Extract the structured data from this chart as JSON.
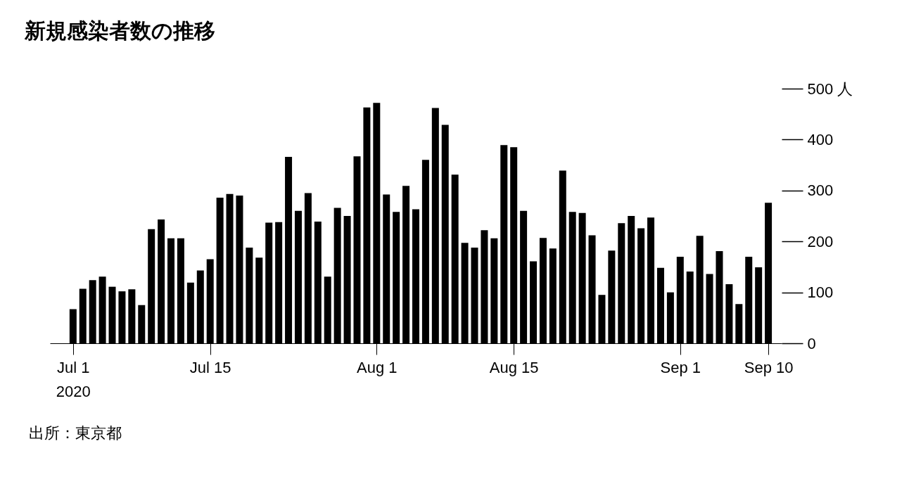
{
  "chart_data": {
    "type": "bar",
    "title": "新規感染者数の推移",
    "x": [
      "2020-07-01",
      "2020-07-02",
      "2020-07-03",
      "2020-07-04",
      "2020-07-05",
      "2020-07-06",
      "2020-07-07",
      "2020-07-08",
      "2020-07-09",
      "2020-07-10",
      "2020-07-11",
      "2020-07-12",
      "2020-07-13",
      "2020-07-14",
      "2020-07-15",
      "2020-07-16",
      "2020-07-17",
      "2020-07-18",
      "2020-07-19",
      "2020-07-20",
      "2020-07-21",
      "2020-07-22",
      "2020-07-23",
      "2020-07-24",
      "2020-07-25",
      "2020-07-26",
      "2020-07-27",
      "2020-07-28",
      "2020-07-29",
      "2020-07-30",
      "2020-07-31",
      "2020-08-01",
      "2020-08-02",
      "2020-08-03",
      "2020-08-04",
      "2020-08-05",
      "2020-08-06",
      "2020-08-07",
      "2020-08-08",
      "2020-08-09",
      "2020-08-10",
      "2020-08-11",
      "2020-08-12",
      "2020-08-13",
      "2020-08-14",
      "2020-08-15",
      "2020-08-16",
      "2020-08-17",
      "2020-08-18",
      "2020-08-19",
      "2020-08-20",
      "2020-08-21",
      "2020-08-22",
      "2020-08-23",
      "2020-08-24",
      "2020-08-25",
      "2020-08-26",
      "2020-08-27",
      "2020-08-28",
      "2020-08-29",
      "2020-08-30",
      "2020-08-31",
      "2020-09-01",
      "2020-09-02",
      "2020-09-03",
      "2020-09-04",
      "2020-09-05",
      "2020-09-06",
      "2020-09-07",
      "2020-09-08",
      "2020-09-09",
      "2020-09-10"
    ],
    "values": [
      67,
      107,
      124,
      131,
      111,
      102,
      106,
      75,
      224,
      243,
      206,
      206,
      119,
      143,
      165,
      286,
      293,
      290,
      188,
      168,
      237,
      238,
      366,
      260,
      295,
      239,
      131,
      266,
      250,
      367,
      463,
      472,
      292,
      258,
      309,
      263,
      360,
      462,
      429,
      331,
      197,
      188,
      222,
      206,
      389,
      385,
      260,
      161,
      207,
      186,
      339,
      258,
      256,
      212,
      95,
      182,
      236,
      250,
      226,
      247,
      148,
      100,
      170,
      141,
      211,
      136,
      181,
      116,
      77,
      170,
      149,
      276
    ],
    "color": "#000000",
    "xlim": [
      "2020-06-29",
      "2020-09-11"
    ],
    "xticks": [
      {
        "value": "2020-07-01",
        "label": "Jul 1\n2020"
      },
      {
        "value": "2020-07-15",
        "label": "Jul 15"
      },
      {
        "value": "2020-08-01",
        "label": "Aug 1"
      },
      {
        "value": "2020-08-15",
        "label": "Aug 15"
      },
      {
        "value": "2020-09-01",
        "label": "Sep 1"
      },
      {
        "value": "2020-09-10",
        "label": "Sep 10"
      }
    ],
    "ylim": [
      0,
      500
    ],
    "yticks": [
      0,
      100,
      200,
      300,
      400,
      {
        "value": 500,
        "label": "500 人"
      }
    ],
    "grid": false,
    "annotations": [
      "出所：東京都"
    ]
  }
}
